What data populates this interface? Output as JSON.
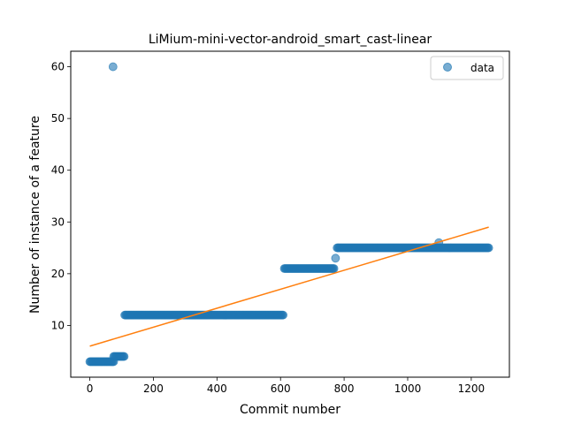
{
  "chart_data": {
    "type": "scatter",
    "title": "LiMium-mini-vector-android_smart_cast-linear",
    "xlabel": "Commit number",
    "ylabel": "Number of instance of a feature",
    "xlim": [
      -60,
      1320
    ],
    "ylim": [
      0,
      63
    ],
    "xticks": [
      0,
      200,
      400,
      600,
      800,
      1000,
      1200
    ],
    "yticks": [
      10,
      20,
      30,
      40,
      50,
      60
    ],
    "grid": false,
    "legend": {
      "placement": "top-right",
      "entries": [
        "data"
      ]
    },
    "colors": {
      "data": "#1f77b4",
      "fit": "#ff7f0e"
    },
    "series": [
      {
        "name": "data",
        "kind": "scatter",
        "segments": [
          {
            "x_start": 0,
            "x_end": 75,
            "step": 3,
            "y": 3
          },
          {
            "x_start": 75,
            "x_end": 108,
            "step": 3,
            "y": 4
          },
          {
            "x_start": 110,
            "x_end": 608,
            "step": 3,
            "y": 12
          },
          {
            "x_start": 612,
            "x_end": 770,
            "step": 3,
            "y": 21
          },
          {
            "x_start": 778,
            "x_end": 1255,
            "step": 3,
            "y": 25
          }
        ],
        "extra_points": [
          {
            "x": 73,
            "y": 60
          },
          {
            "x": 773,
            "y": 23
          },
          {
            "x": 1098,
            "y": 26
          }
        ]
      },
      {
        "kind": "line",
        "x": [
          0,
          1255
        ],
        "y": [
          6,
          29
        ]
      }
    ]
  }
}
